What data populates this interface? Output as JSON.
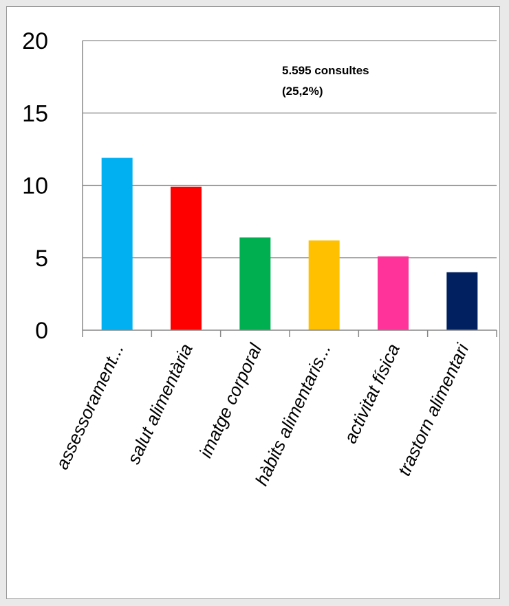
{
  "chart_data": {
    "type": "bar",
    "categories": [
      "assessorament...",
      "salut alimentària",
      "imatge corporal",
      "hàbits alimentaris...",
      "activitat física",
      "trastorn alimentari"
    ],
    "values": [
      11.9,
      9.9,
      6.4,
      6.2,
      5.1,
      4.0
    ],
    "colors": [
      "#00b0f0",
      "#ff0000",
      "#00b050",
      "#ffc000",
      "#ff3399",
      "#002060"
    ],
    "ylim": [
      0,
      20
    ],
    "yticks": [
      "0",
      "5",
      "10",
      "15",
      "20"
    ],
    "grid": true,
    "annotation": [
      "5.595 consultes",
      "(25,2%)"
    ],
    "title": "",
    "xlabel": "",
    "ylabel": ""
  }
}
